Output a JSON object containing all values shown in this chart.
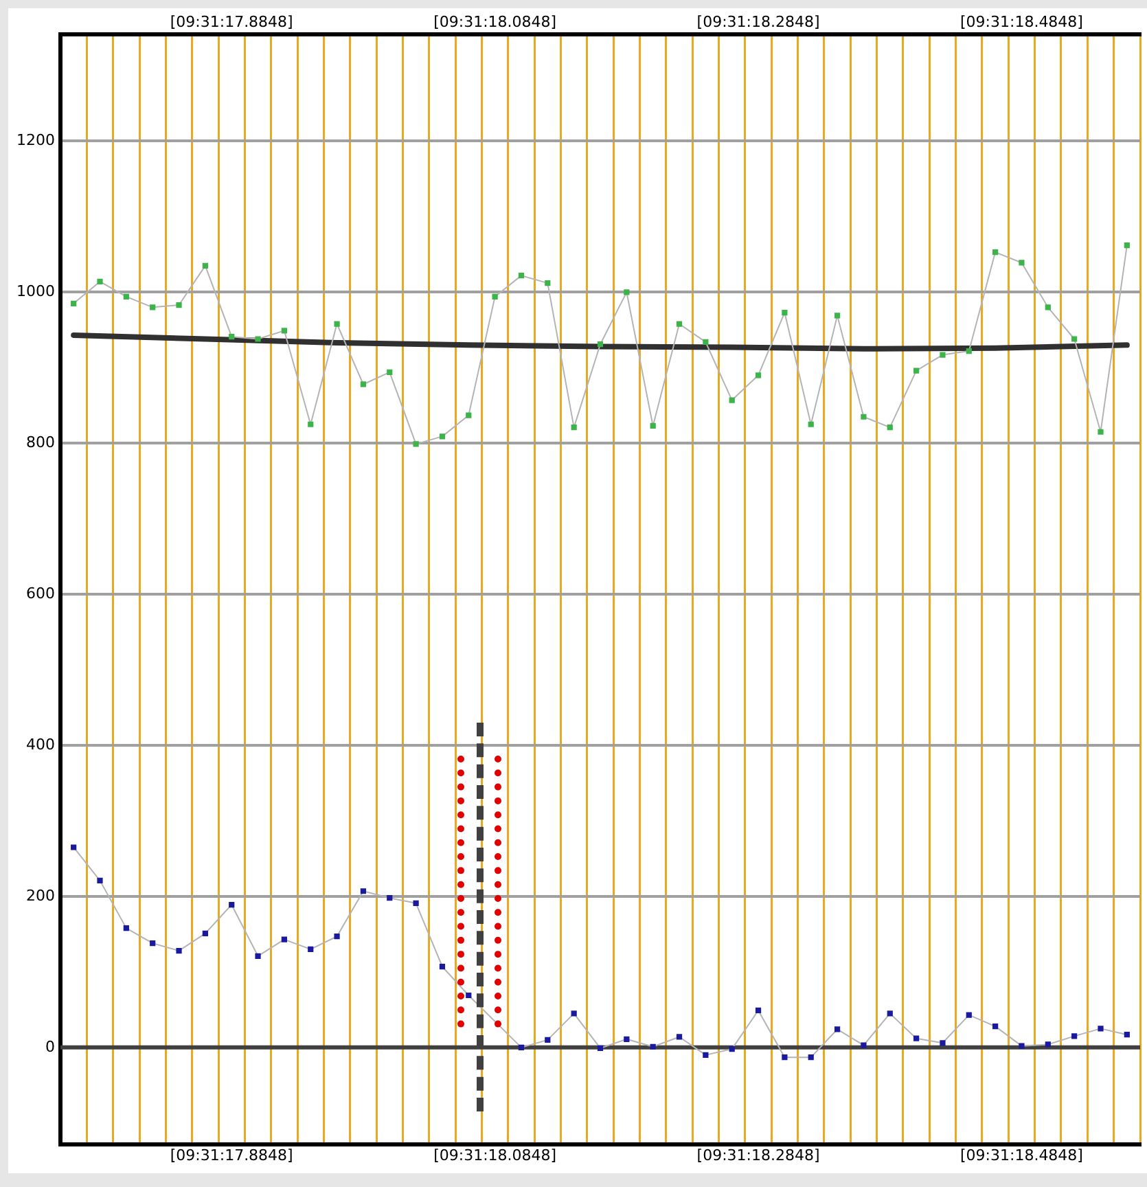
{
  "chart_data": {
    "type": "line",
    "categories": [
      null,
      null,
      null,
      null,
      null,
      null,
      "[09:31:17.8848]",
      null,
      null,
      null,
      null,
      null,
      null,
      null,
      null,
      null,
      "[09:31:18.0848]",
      null,
      null,
      null,
      null,
      null,
      null,
      null,
      null,
      null,
      "[09:31:18.2848]",
      null,
      null,
      null,
      null,
      null,
      null,
      null,
      null,
      null,
      "[09:31:18.4848]",
      null,
      null,
      null,
      null
    ],
    "ylim": [
      -128,
      1341
    ],
    "yticks": [
      0,
      200,
      400,
      600,
      800,
      1000,
      1200
    ],
    "grid": true,
    "legend": false,
    "marker": "square",
    "series": [
      {
        "color": "#3cb44a",
        "values": [
          985,
          1014,
          994,
          980,
          983,
          1035,
          941,
          938,
          949,
          825,
          958,
          878,
          894,
          799,
          809,
          837,
          994,
          1022,
          1012,
          821,
          931,
          1000,
          823,
          958,
          934,
          857,
          890,
          973,
          825,
          969,
          835,
          821,
          896,
          917,
          922,
          1053,
          1039,
          980,
          938,
          815,
          1062
        ]
      },
      {
        "color": "#1a1aa0",
        "values": [
          265,
          221,
          158,
          138,
          128,
          151,
          189,
          121,
          143,
          130,
          147,
          207,
          198,
          191,
          107,
          69,
          null,
          0,
          10,
          45,
          -1,
          11,
          1,
          14,
          -10,
          -2,
          49,
          -13,
          -13,
          24,
          3,
          45,
          12,
          6,
          43,
          28,
          2,
          4,
          15,
          25,
          17
        ]
      },
      {
        "color": "#303030",
        "marker": "none",
        "values": [
          943,
          null,
          null,
          null,
          null,
          938,
          null,
          null,
          null,
          null,
          933,
          null,
          null,
          null,
          null,
          930,
          null,
          null,
          null,
          null,
          928,
          null,
          null,
          null,
          null,
          927,
          null,
          null,
          null,
          null,
          925,
          null,
          null,
          null,
          null,
          926,
          null,
          null,
          null,
          null,
          930
        ]
      }
    ],
    "ref_lines": [
      {
        "axis": "y",
        "value": 0,
        "color": "#404040"
      }
    ]
  }
}
